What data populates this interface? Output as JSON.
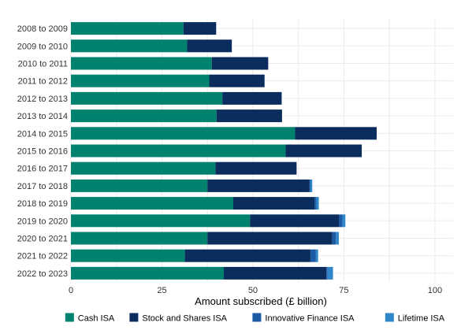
{
  "chart_data": {
    "type": "bar",
    "orientation": "horizontal",
    "stacked": true,
    "xlabel": "Amount subscribed (£ billion)",
    "ylabel": "",
    "xlim": [
      0,
      105
    ],
    "xticks": [
      0,
      25,
      50,
      75,
      100
    ],
    "grid": true,
    "legend_position": "bottom",
    "categories": [
      "2008 to 2009",
      "2009 to 2010",
      "2010 to 2011",
      "2011 to 2012",
      "2012 to 2013",
      "2013 to 2014",
      "2014 to 2015",
      "2015 to 2016",
      "2016 to 2017",
      "2017 to 2018",
      "2018 to 2019",
      "2019 to 2020",
      "2020 to 2021",
      "2021 to 2022",
      "2022 to 2023"
    ],
    "series": [
      {
        "name": "Cash ISA",
        "color": "#00826e",
        "values": [
          30.9,
          31.9,
          38.7,
          38.0,
          41.6,
          40.0,
          61.6,
          59.0,
          39.7,
          37.5,
          44.6,
          49.2,
          37.5,
          31.3,
          42.0
        ]
      },
      {
        "name": "Stock and Shares ISA",
        "color": "#0b2d5e",
        "values": [
          9.0,
          12.3,
          15.5,
          15.2,
          16.3,
          18.0,
          22.4,
          20.9,
          22.3,
          28.0,
          22.3,
          24.5,
          34.3,
          34.5,
          28.2
        ]
      },
      {
        "name": "Innovative Finance ISA",
        "color": "#1c5aa5",
        "values": [
          0,
          0,
          0,
          0,
          0,
          0,
          0,
          0,
          0,
          0.3,
          0.6,
          0.9,
          1.0,
          1.5,
          0.3
        ]
      },
      {
        "name": "Lifetime ISA",
        "color": "#2f86c8",
        "values": [
          0,
          0,
          0,
          0,
          0,
          0,
          0,
          0,
          0,
          0.5,
          0.6,
          0.8,
          0.8,
          0.6,
          1.5
        ]
      }
    ]
  }
}
